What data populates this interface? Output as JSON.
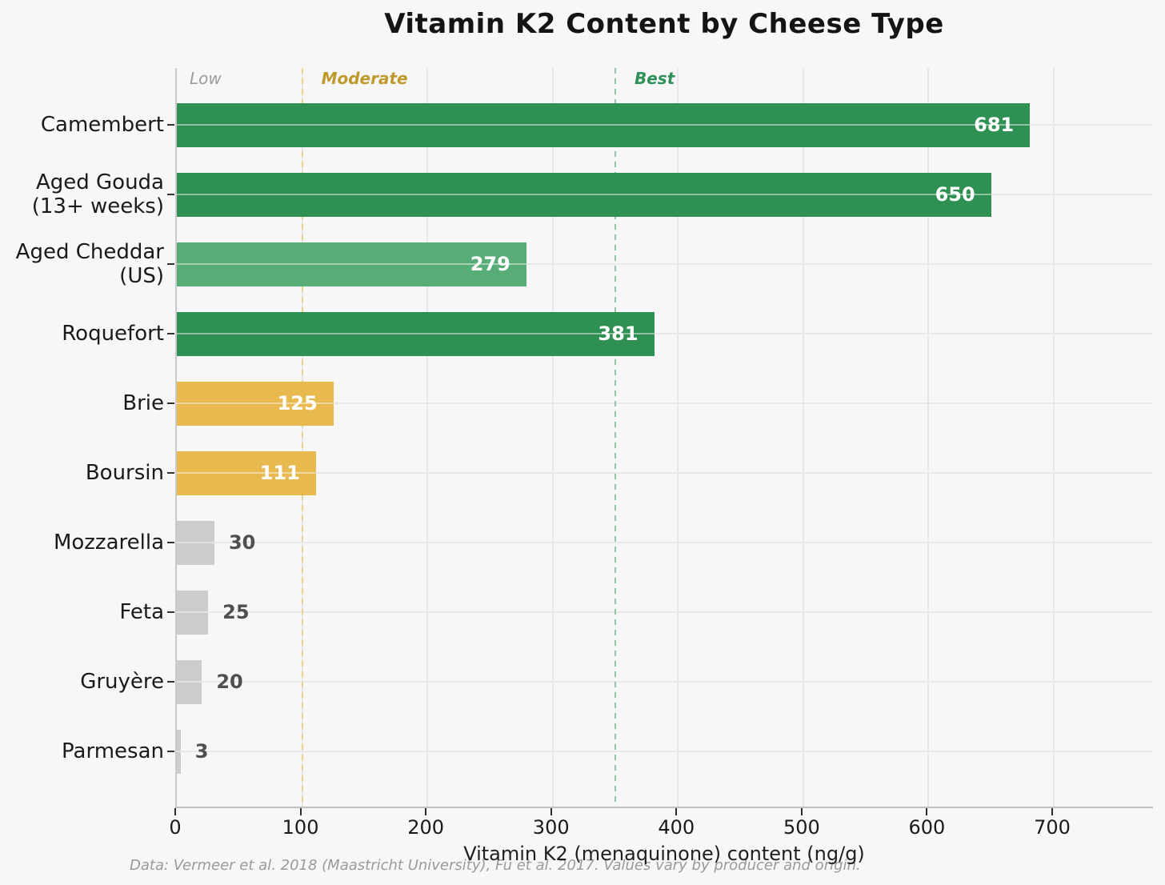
{
  "title": "Vitamin K2 Content by Cheese Type",
  "x_axis": {
    "label": "Vitamin K2 (menaquinone) content (ng/g)",
    "ticks": [
      0,
      100,
      200,
      300,
      400,
      500,
      600,
      700
    ]
  },
  "footer": "Data: Vermeer et al. 2018 (Maastricht University), Fu et al. 2017. Values vary by producer and origin.",
  "zones": [
    {
      "label": "Low",
      "text_color": "#9b9b9b",
      "bold": false,
      "line_value": null,
      "line_color": null,
      "label_at": 16
    },
    {
      "label": "Moderate",
      "text_color": "#bf992b",
      "bold": true,
      "line_value": 100,
      "line_color": "#ecd08d",
      "label_offset": 24
    },
    {
      "label": "Best",
      "text_color": "#2f8f57",
      "bold": true,
      "line_value": 350,
      "line_color": "#92c5a5",
      "label_offset": 24
    }
  ],
  "chart_data": {
    "type": "bar",
    "orientation": "horizontal",
    "title": "Vitamin K2 Content by Cheese Type",
    "xlabel": "Vitamin K2 (menaquinone) content (ng/g)",
    "ylabel": "",
    "xlim": [
      0,
      780
    ],
    "grid": true,
    "categories": [
      "Camembert",
      "Aged Gouda\n(13+ weeks)",
      "Aged Cheddar\n(US)",
      "Roquefort",
      "Brie",
      "Boursin",
      "Mozzarella",
      "Feta",
      "Gruyère",
      "Parmesan"
    ],
    "values": [
      681,
      650,
      279,
      381,
      125,
      111,
      30,
      25,
      20,
      3
    ],
    "bar_colors": [
      "#2e9052",
      "#2e9052",
      "#57ac77",
      "#2e9052",
      "#e8b94f",
      "#e8b94f",
      "#cccccc",
      "#cccccc",
      "#cccccc",
      "#cccccc"
    ],
    "value_label_inside": [
      true,
      true,
      true,
      true,
      true,
      true,
      false,
      false,
      false,
      false
    ],
    "thresholds": [
      {
        "label": "Moderate",
        "value": 100
      },
      {
        "label": "Best",
        "value": 350
      }
    ]
  },
  "colors": {
    "background": "#f7f7f8",
    "grid": "#e7e7ea",
    "best_green": "#2e9052",
    "high_green": "#57ac77",
    "moderate_gold": "#e8b94f",
    "low_gray": "#cccccc",
    "value_inside_text": "#ffffff",
    "value_outside_text": "#4f4f4f"
  }
}
